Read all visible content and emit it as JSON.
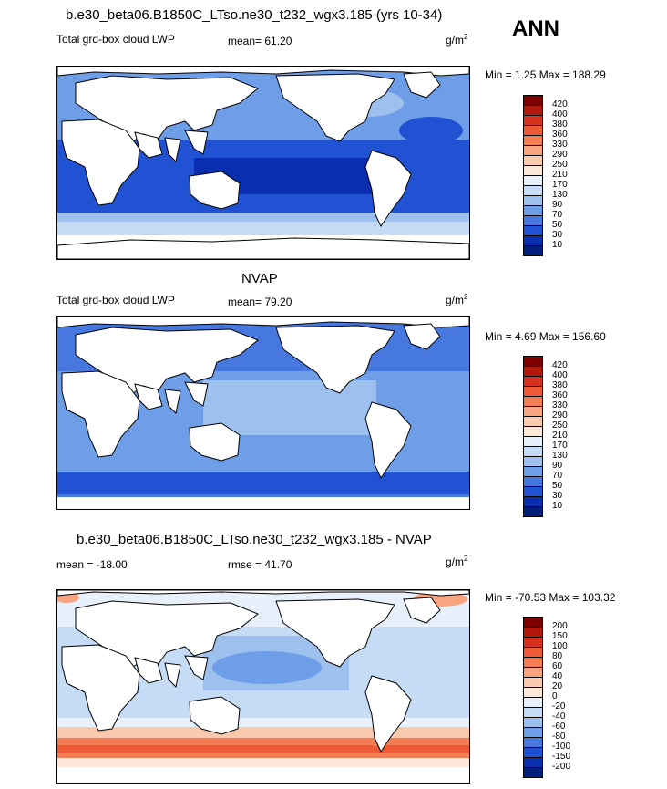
{
  "season": "ANN",
  "units_base": "g/m",
  "units_exp": "2",
  "panels": [
    {
      "title": "b.e30_beta06.B1850C_LTso.ne30_t232_wgx3.185 (yrs 10-34)",
      "left_label": "Total grd-box cloud LWP",
      "mid_label": "mean=  61.20",
      "minmax": "Min =   1.25 Max = 188.29",
      "colorbar": {
        "labels": [
          "420",
          "400",
          "380",
          "360",
          "330",
          "290",
          "250",
          "210",
          "170",
          "130",
          "90",
          "70",
          "50",
          "30",
          "10"
        ],
        "colors": [
          "#7f0000",
          "#b2180b",
          "#d7301f",
          "#ee5a36",
          "#f57d55",
          "#f8a481",
          "#fbc9ae",
          "#fde7d8",
          "#e8f0fb",
          "#c6dbf5",
          "#9dc0ef",
          "#6f9ee8",
          "#4778e0",
          "#2252d4",
          "#0a2eb0",
          "#001f7a"
        ]
      }
    },
    {
      "title": "NVAP",
      "left_label": "Total grd-box cloud LWP",
      "mid_label": "mean=  79.20",
      "minmax": "Min =   4.69 Max = 156.60",
      "colorbar": {
        "labels": [
          "420",
          "400",
          "380",
          "360",
          "330",
          "290",
          "250",
          "210",
          "170",
          "130",
          "90",
          "70",
          "50",
          "30",
          "10"
        ],
        "colors": [
          "#7f0000",
          "#b2180b",
          "#d7301f",
          "#ee5a36",
          "#f57d55",
          "#f8a481",
          "#fbc9ae",
          "#fde7d8",
          "#e8f0fb",
          "#c6dbf5",
          "#9dc0ef",
          "#6f9ee8",
          "#4778e0",
          "#2252d4",
          "#0a2eb0",
          "#001f7a"
        ]
      }
    },
    {
      "title": "b.e30_beta06.B1850C_LTso.ne30_t232_wgx3.185 - NVAP",
      "left_label": "mean = -18.00",
      "mid_label": "rmse =  41.70",
      "minmax": "Min = -70.53 Max = 103.32",
      "colorbar": {
        "labels": [
          "200",
          "150",
          "100",
          "80",
          "60",
          "40",
          "20",
          "0",
          "-20",
          "-40",
          "-60",
          "-80",
          "-100",
          "-150",
          "-200"
        ],
        "colors": [
          "#7f0000",
          "#b2180b",
          "#d7301f",
          "#ee5a36",
          "#f57d55",
          "#f8a481",
          "#fbc9ae",
          "#fde7d8",
          "#e8f0fb",
          "#c6dbf5",
          "#9dc0ef",
          "#6f9ee8",
          "#4778e0",
          "#2252d4",
          "#0a2eb0",
          "#001f7a"
        ]
      }
    }
  ]
}
